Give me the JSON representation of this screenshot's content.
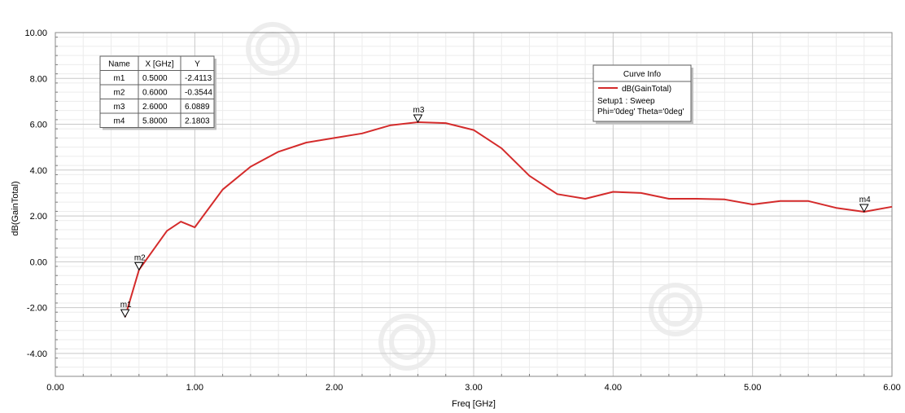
{
  "chart_data": {
    "type": "line",
    "xlabel": "Freq [GHz]",
    "ylabel": "dB(GainTotal)",
    "xlim": [
      0,
      6
    ],
    "ylim": [
      -5,
      10
    ],
    "grid": true,
    "x_ticks": [
      {
        "v": 0,
        "label": "0.00"
      },
      {
        "v": 1,
        "label": "1.00"
      },
      {
        "v": 2,
        "label": "2.00"
      },
      {
        "v": 3,
        "label": "3.00"
      },
      {
        "v": 4,
        "label": "4.00"
      },
      {
        "v": 5,
        "label": "5.00"
      },
      {
        "v": 6,
        "label": "6.00"
      }
    ],
    "y_ticks": [
      {
        "v": 10,
        "label": "10.00"
      },
      {
        "v": 8,
        "label": "8.00"
      },
      {
        "v": 6,
        "label": "6.00"
      },
      {
        "v": 4,
        "label": "4.00"
      },
      {
        "v": 2,
        "label": "2.00"
      },
      {
        "v": 0,
        "label": "0.00"
      },
      {
        "v": -2,
        "label": "-2.00"
      },
      {
        "v": -4,
        "label": "-4.00"
      }
    ],
    "series": [
      {
        "name": "dB(GainTotal)",
        "color": "#d42b2b",
        "x": [
          0.5,
          0.6,
          0.8,
          0.9,
          1.0,
          1.2,
          1.4,
          1.6,
          1.8,
          2.0,
          2.2,
          2.4,
          2.6,
          2.8,
          3.0,
          3.2,
          3.4,
          3.6,
          3.8,
          4.0,
          4.2,
          4.4,
          4.6,
          4.8,
          5.0,
          5.2,
          5.4,
          5.6,
          5.8,
          6.0
        ],
        "y": [
          -2.4113,
          -0.3544,
          1.35,
          1.75,
          1.5,
          3.15,
          4.15,
          4.8,
          5.2,
          5.4,
          5.6,
          5.95,
          6.0889,
          6.05,
          5.75,
          4.95,
          3.75,
          2.95,
          2.75,
          3.05,
          3.0,
          2.75,
          2.75,
          2.72,
          2.5,
          2.65,
          2.65,
          2.35,
          2.1803,
          2.4
        ]
      }
    ],
    "markers": [
      {
        "name": "m1",
        "x": 0.5,
        "y": -2.4113
      },
      {
        "name": "m2",
        "x": 0.6,
        "y": -0.3544
      },
      {
        "name": "m3",
        "x": 2.6,
        "y": 6.0889
      },
      {
        "name": "m4",
        "x": 5.8,
        "y": 2.1803
      }
    ],
    "marker_table": {
      "headers": [
        "Name",
        "X [GHz]",
        "Y"
      ],
      "rows": [
        [
          "m1",
          "0.5000",
          "-2.4113"
        ],
        [
          "m2",
          "0.6000",
          "-0.3544"
        ],
        [
          "m3",
          "2.6000",
          "6.0889"
        ],
        [
          "m4",
          "5.8000",
          "2.1803"
        ]
      ]
    },
    "legend": {
      "title": "Curve Info",
      "entry": "dB(GainTotal)",
      "lines": [
        "Setup1 : Sweep",
        "Phi='0deg' Theta='0deg'"
      ]
    }
  }
}
